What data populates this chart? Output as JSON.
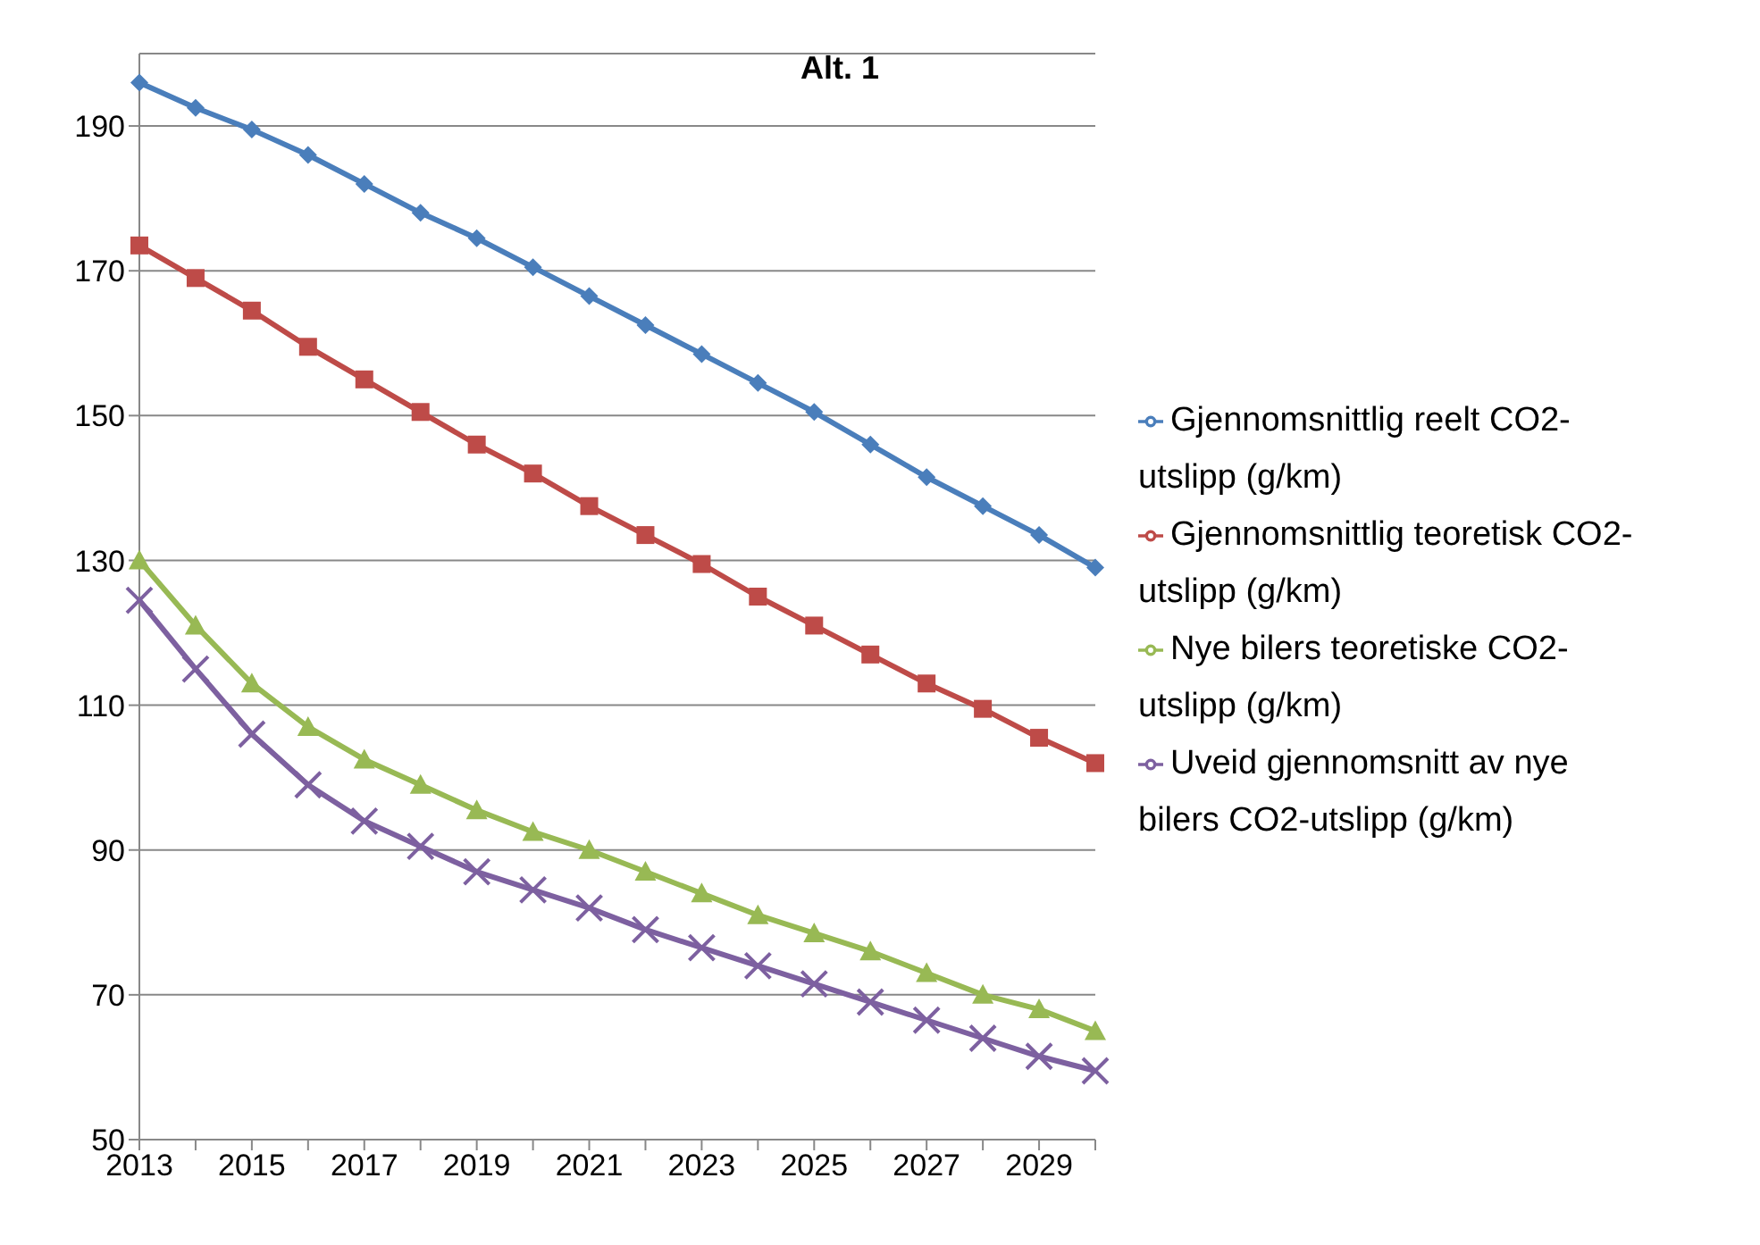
{
  "chart_data": {
    "type": "line",
    "title": "Alt. 1",
    "categories": [
      "2013",
      null,
      "2015",
      null,
      "2017",
      null,
      "2019",
      null,
      "2021",
      null,
      "2023",
      null,
      "2025",
      null,
      "2027",
      null,
      "2029",
      null
    ],
    "series": [
      {
        "name": "Gjennomsnittlig reelt CO2-utslipp (g/km)",
        "color": "#4a7ebb",
        "marker": "diamond",
        "values": [
          196,
          192.5,
          189.5,
          186,
          182,
          178,
          174.5,
          170.5,
          166.5,
          162.5,
          158.5,
          154.5,
          150.5,
          146,
          141.5,
          137.5,
          133.5,
          129
        ]
      },
      {
        "name": "Gjennomsnittlig teoretisk CO2-utslipp (g/km)",
        "color": "#be4b48",
        "marker": "square",
        "values": [
          173.5,
          169,
          164.5,
          159.5,
          155,
          150.5,
          146,
          142,
          137.5,
          133.5,
          129.5,
          125,
          121,
          117,
          113,
          109.5,
          105.5,
          102
        ]
      },
      {
        "name": "Nye bilers teoretiske  CO2-utslipp (g/km)",
        "color": "#98b954",
        "marker": "triangle",
        "values": [
          130,
          121,
          113,
          107,
          102.5,
          99,
          95.5,
          92.5,
          90,
          87,
          84,
          81,
          78.5,
          76,
          73,
          70,
          68,
          65
        ]
      },
      {
        "name": "Uveid gjennomsnitt av nye bilers CO2-utslipp (g/km)",
        "color": "#7d60a0",
        "marker": "cross",
        "values": [
          124.5,
          115,
          106,
          99,
          94,
          90.5,
          87,
          84.5,
          82,
          79,
          76.5,
          74,
          71.5,
          69,
          66.5,
          64,
          61.5,
          59.5
        ]
      }
    ],
    "ylim": [
      50,
      200
    ],
    "yticks": [
      50,
      70,
      90,
      110,
      130,
      150,
      170,
      190
    ],
    "grid": "y",
    "legend": "right"
  }
}
